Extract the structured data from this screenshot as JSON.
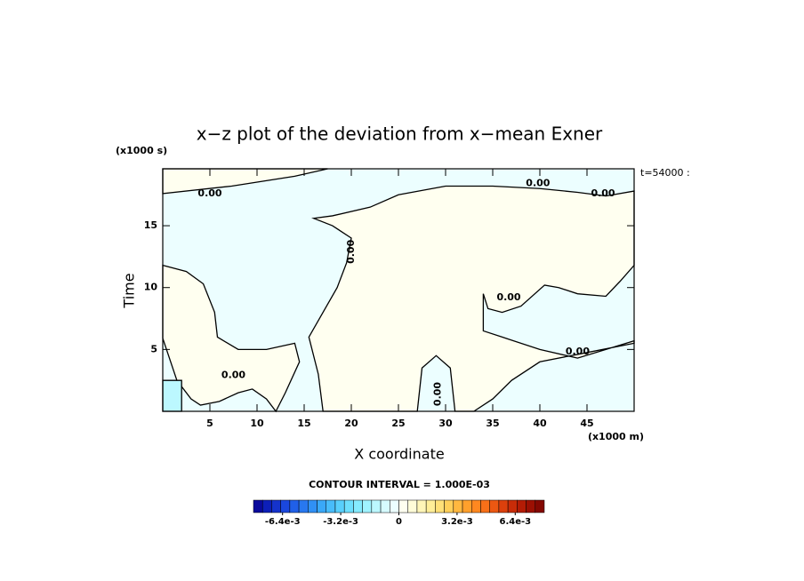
{
  "chart_data": {
    "type": "contour",
    "title": "x−z plot of the deviation from x−mean Exner",
    "x_label": "X coordinate",
    "y_label": "Time",
    "x_unit": "(x1000 m)",
    "y_unit": "(x1000 s)",
    "time_label": "t=54000 :",
    "contour_interval_label": "CONTOUR INTERVAL = 1.000E-03",
    "xlim": [
      0,
      50
    ],
    "ylim": [
      0,
      19.6
    ],
    "xticks": [
      5,
      10,
      15,
      20,
      25,
      30,
      35,
      40,
      45
    ],
    "yticks": [
      5,
      10,
      15
    ],
    "background_color": "#ecfeff",
    "regions": [
      {
        "color": "#fffff0",
        "x": [
          0,
          17.5,
          14,
          7.3,
          0
        ],
        "y": [
          19.6,
          19.6,
          19,
          18.2,
          17.6
        ]
      },
      {
        "color": "#fffff0",
        "x": [
          16,
          18,
          22,
          25,
          30,
          35,
          40,
          44,
          47,
          50,
          50,
          48.5,
          47,
          44,
          42,
          40.5,
          38,
          36,
          34.5,
          34,
          34,
          36,
          40,
          44,
          47,
          50,
          50,
          44,
          40,
          37,
          35,
          33,
          31,
          30.5,
          29,
          27.5,
          27,
          17,
          16.5,
          15.5,
          17,
          18.5,
          19.5,
          20,
          18
        ],
        "y": [
          15.6,
          15.8,
          16.5,
          17.5,
          18.2,
          18.2,
          18,
          17.7,
          17.4,
          17.8,
          11.8,
          10.5,
          9.3,
          9.5,
          10,
          10.2,
          8.5,
          8,
          8.3,
          9.5,
          6.5,
          6,
          5,
          4.3,
          5,
          5.7,
          5.5,
          4.6,
          4,
          2.5,
          1,
          0,
          0,
          3.5,
          4.5,
          3.5,
          0,
          0,
          3,
          6,
          8,
          10,
          12,
          14,
          15
        ]
      },
      {
        "color": "#fffff0",
        "x": [
          0,
          2.5,
          4.3,
          5.5,
          5.8,
          8,
          11,
          14,
          14.5,
          13,
          12,
          11,
          9.5,
          8,
          6,
          4,
          3,
          1.5,
          0
        ],
        "y": [
          11.8,
          11.3,
          10.3,
          8,
          6,
          5,
          5,
          5.5,
          4,
          1.5,
          0,
          1,
          1.8,
          1.5,
          0.8,
          0.5,
          1,
          2.5,
          5.9
        ]
      },
      {
        "color": "#bcf8ff",
        "x": [
          0,
          2,
          2,
          0
        ],
        "y": [
          0,
          0,
          2.5,
          2.5
        ]
      }
    ],
    "contour_labels": [
      {
        "text": "0.00",
        "x": 5,
        "y": 17.6,
        "angle": 0
      },
      {
        "text": "0.00",
        "x": 39.8,
        "y": 18.4,
        "angle": 0
      },
      {
        "text": "0.00",
        "x": 46.7,
        "y": 17.6,
        "angle": 0
      },
      {
        "text": "0.00",
        "x": 36.7,
        "y": 9.2,
        "angle": 0
      },
      {
        "text": "0.00",
        "x": 44,
        "y": 4.8,
        "angle": 0
      },
      {
        "text": "0.00",
        "x": 7.5,
        "y": 2.9,
        "angle": 0
      },
      {
        "text": "0.00",
        "x": 29.2,
        "y": 1.4,
        "angle": -90
      },
      {
        "text": "0.00",
        "x": 20,
        "y": 12.9,
        "angle": -90
      }
    ],
    "colorbar": {
      "clim": [
        -0.008,
        0.008
      ],
      "colors": [
        "#0a0a9c",
        "#0d1fb8",
        "#1533cc",
        "#1a47dd",
        "#2060e8",
        "#2878f0",
        "#3090f5",
        "#3aa8f8",
        "#48bcfa",
        "#58cffc",
        "#6ddffd",
        "#85ebfe",
        "#a0f3ff",
        "#bcf8ff",
        "#d6fbff",
        "#ecfeff",
        "#fffff0",
        "#fffcd8",
        "#fff6b8",
        "#ffee98",
        "#ffe078",
        "#ffcf5a",
        "#ffb840",
        "#ffa02c",
        "#ff8820",
        "#f87018",
        "#ec5812",
        "#dc400c",
        "#c82c08",
        "#b41c05",
        "#9c1003",
        "#840802"
      ],
      "ticks": [
        {
          "value": -0.0064,
          "label": "-6.4e-3"
        },
        {
          "value": -0.0032,
          "label": "-3.2e-3"
        },
        0,
        {
          "value": 0.0032,
          "label": "3.2e-3"
        },
        {
          "value": 0.0064,
          "label": "6.4e-3"
        }
      ]
    }
  }
}
